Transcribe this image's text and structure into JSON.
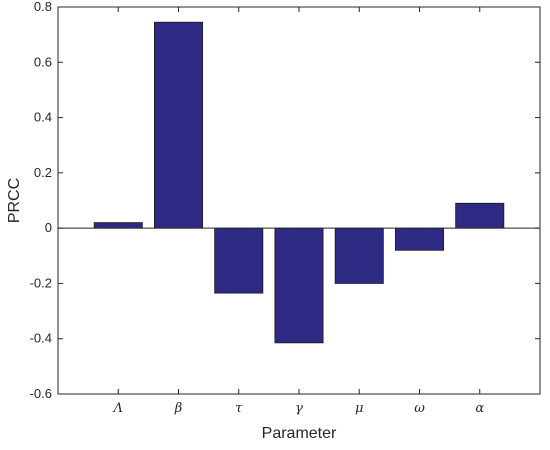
{
  "chart_data": {
    "type": "bar",
    "categories": [
      "Λ",
      "β",
      "τ",
      "γ",
      "μ",
      "ω",
      "α"
    ],
    "values": [
      0.02,
      0.745,
      -0.235,
      -0.415,
      -0.2,
      -0.08,
      0.09
    ],
    "xlabel": "Parameter",
    "ylabel": "PRCC",
    "ylim": [
      -0.6,
      0.8
    ],
    "yticks": [
      -0.6,
      -0.4,
      -0.2,
      0,
      0.2,
      0.4,
      0.6,
      0.8
    ],
    "ytick_labels": [
      "-0.6",
      "-0.4",
      "-0.2",
      "0",
      "0.2",
      "0.4",
      "0.6",
      "0.8"
    ],
    "bar_color": "#2e2a84",
    "grid": false,
    "legend": "none"
  }
}
